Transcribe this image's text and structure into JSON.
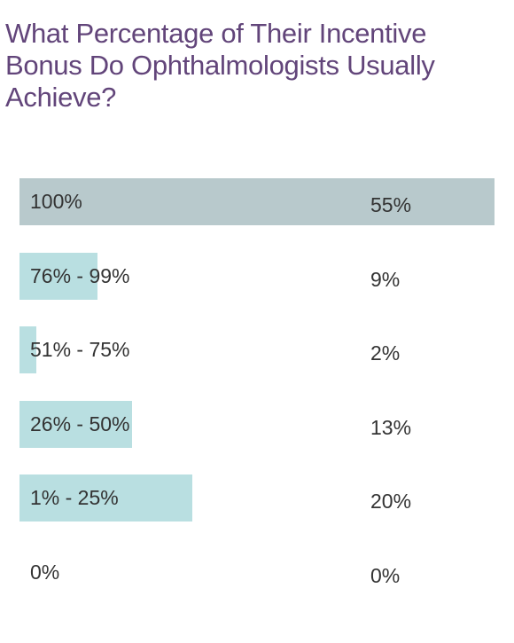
{
  "chart_data": {
    "type": "bar",
    "orientation": "horizontal",
    "title": "What Percentage of Their Incentive Bonus Do Ophthalmologists Usually Achieve?",
    "categories": [
      "100%",
      "76% - 99%",
      "51% - 75%",
      "26% - 50%",
      "1% - 25%",
      "0%"
    ],
    "values": [
      55,
      9,
      2,
      13,
      20,
      0
    ],
    "value_labels": [
      "55%",
      "9%",
      "2%",
      "13%",
      "20%",
      "0%"
    ],
    "xlim": [
      0,
      55
    ],
    "grid": false,
    "legend": "none",
    "colors": {
      "top_bar": "#b8c9cc",
      "bar": "#b9dfe1",
      "title": "#62457a",
      "text": "#333333"
    }
  }
}
